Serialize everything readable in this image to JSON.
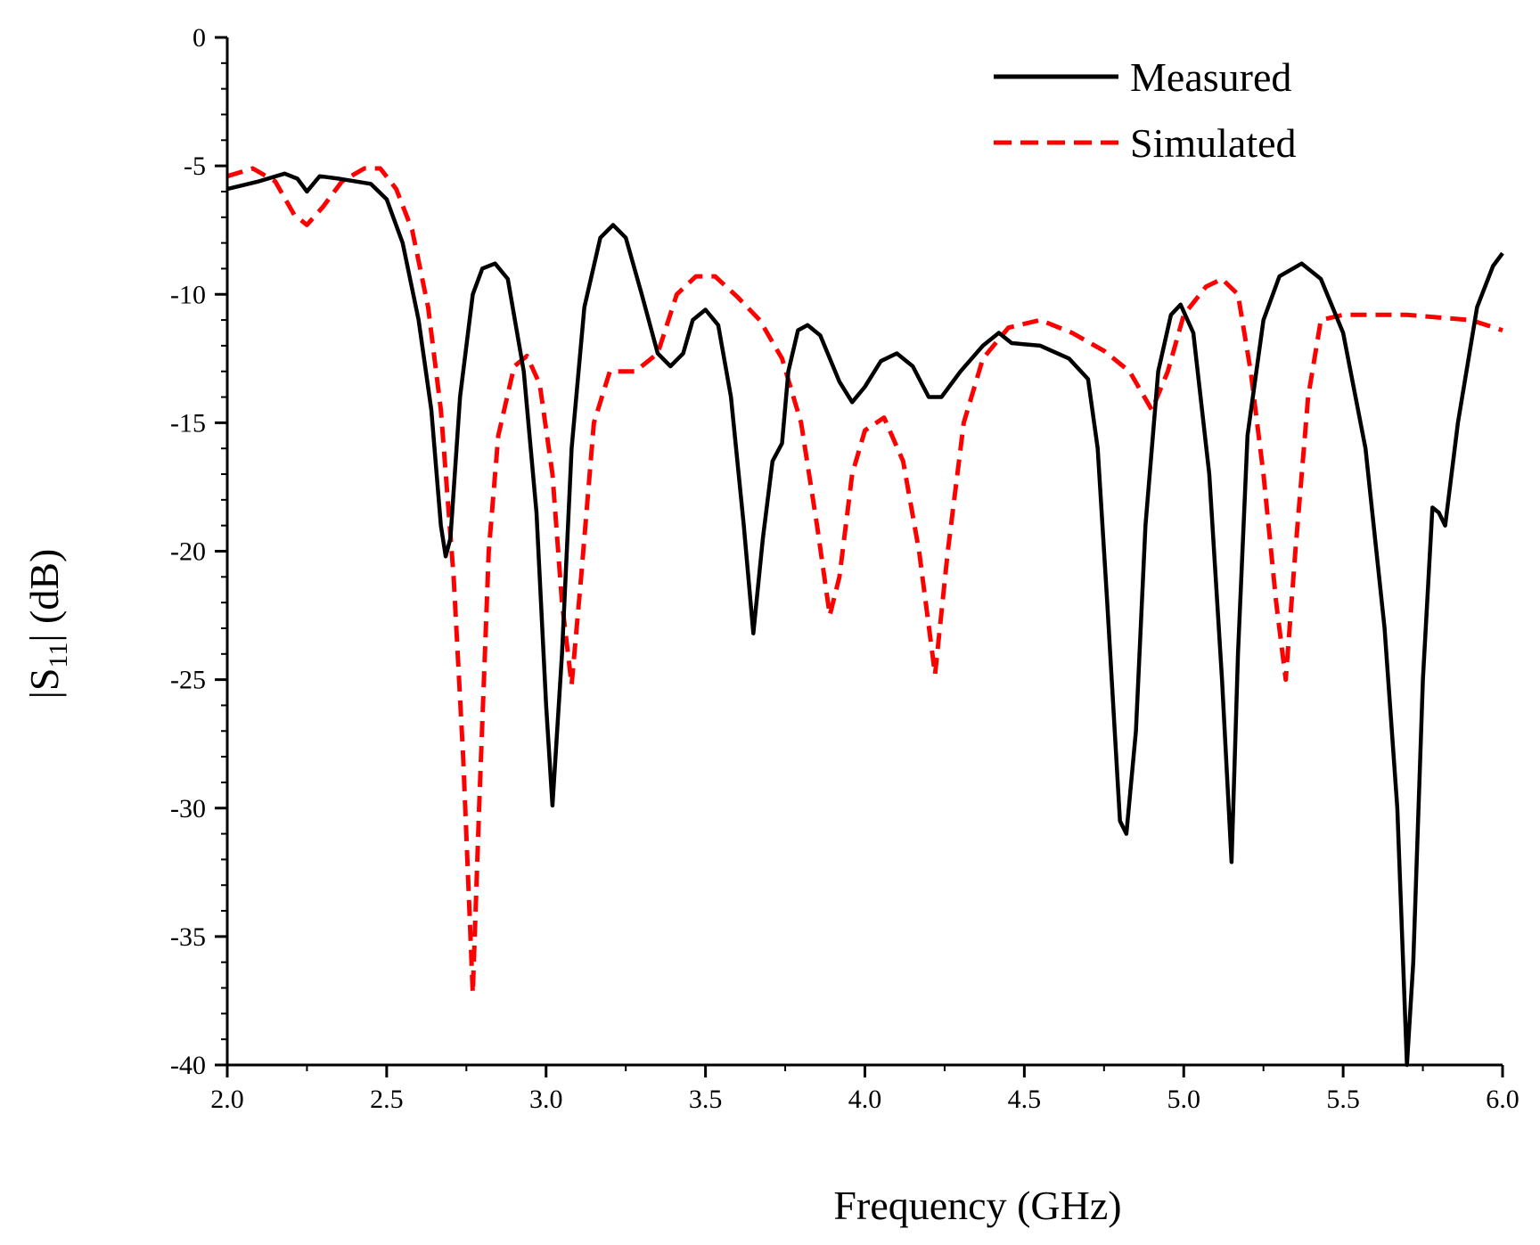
{
  "chart_data": {
    "type": "line",
    "title": "",
    "xlabel": "Frequency (GHz)",
    "ylabel_main": "|S",
    "ylabel_sub": "11",
    "ylabel_rest": "| (dB)",
    "xlim": [
      2.0,
      6.0
    ],
    "ylim": [
      -40,
      0
    ],
    "xticks": [
      2.0,
      2.5,
      3.0,
      3.5,
      4.0,
      4.5,
      5.0,
      5.5,
      6.0
    ],
    "xtick_labels": [
      "2.0",
      "2.5",
      "3.0",
      "3.5",
      "4.0",
      "4.5",
      "5.0",
      "5.5",
      "6.0"
    ],
    "yticks": [
      0,
      -5,
      -10,
      -15,
      -20,
      -25,
      -30,
      -35,
      -40
    ],
    "ytick_labels": [
      "0",
      "-5",
      "-10",
      "-15",
      "-20",
      "-25",
      "-30",
      "-35",
      "-40"
    ],
    "legend_position": "top-right",
    "series": [
      {
        "name": "Measured",
        "color": "#000000",
        "style": "solid",
        "points": [
          [
            2.0,
            -5.9
          ],
          [
            2.1,
            -5.6
          ],
          [
            2.18,
            -5.3
          ],
          [
            2.22,
            -5.5
          ],
          [
            2.25,
            -6.0
          ],
          [
            2.29,
            -5.4
          ],
          [
            2.35,
            -5.5
          ],
          [
            2.45,
            -5.7
          ],
          [
            2.5,
            -6.3
          ],
          [
            2.55,
            -8.0
          ],
          [
            2.6,
            -11.0
          ],
          [
            2.64,
            -14.5
          ],
          [
            2.67,
            -19.0
          ],
          [
            2.685,
            -20.2
          ],
          [
            2.7,
            -19.5
          ],
          [
            2.73,
            -14.0
          ],
          [
            2.77,
            -10.0
          ],
          [
            2.8,
            -9.0
          ],
          [
            2.84,
            -8.8
          ],
          [
            2.88,
            -9.4
          ],
          [
            2.93,
            -13.0
          ],
          [
            2.97,
            -18.5
          ],
          [
            3.0,
            -26.0
          ],
          [
            3.02,
            -29.9
          ],
          [
            3.05,
            -24.0
          ],
          [
            3.08,
            -16.0
          ],
          [
            3.12,
            -10.5
          ],
          [
            3.17,
            -7.8
          ],
          [
            3.21,
            -7.3
          ],
          [
            3.25,
            -7.8
          ],
          [
            3.3,
            -10.0
          ],
          [
            3.35,
            -12.3
          ],
          [
            3.39,
            -12.8
          ],
          [
            3.43,
            -12.3
          ],
          [
            3.46,
            -11.0
          ],
          [
            3.5,
            -10.6
          ],
          [
            3.54,
            -11.2
          ],
          [
            3.58,
            -14.0
          ],
          [
            3.62,
            -19.0
          ],
          [
            3.65,
            -23.2
          ],
          [
            3.68,
            -19.5
          ],
          [
            3.71,
            -16.5
          ],
          [
            3.74,
            -15.8
          ],
          [
            3.76,
            -13.0
          ],
          [
            3.79,
            -11.4
          ],
          [
            3.82,
            -11.2
          ],
          [
            3.86,
            -11.6
          ],
          [
            3.92,
            -13.4
          ],
          [
            3.96,
            -14.2
          ],
          [
            4.0,
            -13.6
          ],
          [
            4.05,
            -12.6
          ],
          [
            4.1,
            -12.3
          ],
          [
            4.15,
            -12.8
          ],
          [
            4.2,
            -14.0
          ],
          [
            4.24,
            -14.0
          ],
          [
            4.3,
            -13.0
          ],
          [
            4.37,
            -12.0
          ],
          [
            4.42,
            -11.5
          ],
          [
            4.46,
            -11.9
          ],
          [
            4.55,
            -12.0
          ],
          [
            4.64,
            -12.5
          ],
          [
            4.7,
            -13.3
          ],
          [
            4.73,
            -16.0
          ],
          [
            4.76,
            -22.0
          ],
          [
            4.8,
            -30.5
          ],
          [
            4.82,
            -31.0
          ],
          [
            4.85,
            -27.0
          ],
          [
            4.88,
            -19.0
          ],
          [
            4.92,
            -13.0
          ],
          [
            4.96,
            -10.8
          ],
          [
            4.99,
            -10.4
          ],
          [
            5.03,
            -11.5
          ],
          [
            5.08,
            -17.0
          ],
          [
            5.12,
            -25.0
          ],
          [
            5.15,
            -32.1
          ],
          [
            5.17,
            -24.0
          ],
          [
            5.2,
            -15.5
          ],
          [
            5.25,
            -11.0
          ],
          [
            5.3,
            -9.3
          ],
          [
            5.37,
            -8.8
          ],
          [
            5.43,
            -9.4
          ],
          [
            5.5,
            -11.5
          ],
          [
            5.57,
            -16.0
          ],
          [
            5.63,
            -23.0
          ],
          [
            5.67,
            -30.0
          ],
          [
            5.7,
            -40.0
          ],
          [
            5.72,
            -36.0
          ],
          [
            5.75,
            -25.0
          ],
          [
            5.78,
            -18.3
          ],
          [
            5.8,
            -18.5
          ],
          [
            5.82,
            -19.0
          ],
          [
            5.86,
            -15.0
          ],
          [
            5.92,
            -10.5
          ],
          [
            5.97,
            -8.9
          ],
          [
            6.0,
            -8.4
          ]
        ]
      },
      {
        "name": "Simulated",
        "color": "#ff0000",
        "style": "dashed",
        "points": [
          [
            2.0,
            -5.4
          ],
          [
            2.08,
            -5.1
          ],
          [
            2.15,
            -5.6
          ],
          [
            2.21,
            -6.9
          ],
          [
            2.25,
            -7.3
          ],
          [
            2.3,
            -6.6
          ],
          [
            2.36,
            -5.6
          ],
          [
            2.43,
            -5.1
          ],
          [
            2.48,
            -5.1
          ],
          [
            2.53,
            -5.9
          ],
          [
            2.58,
            -7.5
          ],
          [
            2.63,
            -10.5
          ],
          [
            2.67,
            -14.5
          ],
          [
            2.71,
            -21.0
          ],
          [
            2.74,
            -28.0
          ],
          [
            2.77,
            -37.2
          ],
          [
            2.79,
            -30.0
          ],
          [
            2.82,
            -20.0
          ],
          [
            2.85,
            -15.5
          ],
          [
            2.9,
            -12.8
          ],
          [
            2.94,
            -12.4
          ],
          [
            2.98,
            -13.5
          ],
          [
            3.02,
            -17.0
          ],
          [
            3.05,
            -22.0
          ],
          [
            3.08,
            -25.2
          ],
          [
            3.11,
            -21.0
          ],
          [
            3.15,
            -15.0
          ],
          [
            3.2,
            -13.0
          ],
          [
            3.28,
            -13.0
          ],
          [
            3.35,
            -12.3
          ],
          [
            3.41,
            -10.0
          ],
          [
            3.47,
            -9.3
          ],
          [
            3.53,
            -9.3
          ],
          [
            3.6,
            -10.1
          ],
          [
            3.67,
            -11.0
          ],
          [
            3.74,
            -12.5
          ],
          [
            3.8,
            -15.0
          ],
          [
            3.85,
            -19.0
          ],
          [
            3.89,
            -22.5
          ],
          [
            3.92,
            -21.0
          ],
          [
            3.96,
            -17.0
          ],
          [
            4.0,
            -15.3
          ],
          [
            4.06,
            -14.8
          ],
          [
            4.12,
            -16.5
          ],
          [
            4.17,
            -20.0
          ],
          [
            4.22,
            -24.8
          ],
          [
            4.26,
            -20.0
          ],
          [
            4.31,
            -15.0
          ],
          [
            4.37,
            -12.5
          ],
          [
            4.45,
            -11.3
          ],
          [
            4.55,
            -11.0
          ],
          [
            4.65,
            -11.5
          ],
          [
            4.75,
            -12.2
          ],
          [
            4.83,
            -13.0
          ],
          [
            4.9,
            -14.5
          ],
          [
            4.95,
            -13.0
          ],
          [
            5.0,
            -10.8
          ],
          [
            5.07,
            -9.7
          ],
          [
            5.12,
            -9.4
          ],
          [
            5.17,
            -10.0
          ],
          [
            5.21,
            -13.0
          ],
          [
            5.25,
            -17.0
          ],
          [
            5.29,
            -22.0
          ],
          [
            5.32,
            -25.0
          ],
          [
            5.35,
            -20.0
          ],
          [
            5.39,
            -14.0
          ],
          [
            5.43,
            -11.0
          ],
          [
            5.5,
            -10.8
          ],
          [
            5.6,
            -10.8
          ],
          [
            5.7,
            -10.8
          ],
          [
            5.8,
            -10.9
          ],
          [
            5.9,
            -11.0
          ],
          [
            6.0,
            -11.4
          ]
        ]
      }
    ]
  }
}
